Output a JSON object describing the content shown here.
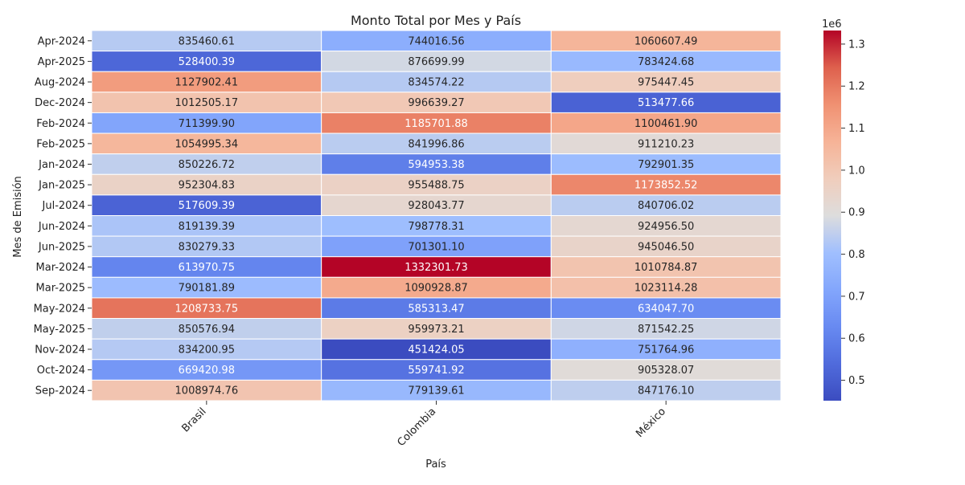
{
  "chart_data": {
    "type": "heatmap",
    "title": "Monto Total por Mes y País",
    "xlabel": "País",
    "ylabel": "Mes de Emisión",
    "columns": [
      "Brasil",
      "Colombia",
      "México"
    ],
    "rows": [
      "Apr-2024",
      "Apr-2025",
      "Aug-2024",
      "Dec-2024",
      "Feb-2024",
      "Feb-2025",
      "Jan-2024",
      "Jan-2025",
      "Jul-2024",
      "Jun-2024",
      "Jun-2025",
      "Mar-2024",
      "Mar-2025",
      "May-2024",
      "May-2025",
      "Nov-2024",
      "Oct-2024",
      "Sep-2024"
    ],
    "values": [
      [
        835460.61,
        744016.56,
        1060607.49
      ],
      [
        528400.39,
        876699.99,
        783424.68
      ],
      [
        1127902.41,
        834574.22,
        975447.45
      ],
      [
        1012505.17,
        996639.27,
        513477.66
      ],
      [
        711399.9,
        1185701.88,
        1100461.9
      ],
      [
        1054995.34,
        841996.86,
        911210.23
      ],
      [
        850226.72,
        594953.38,
        792901.35
      ],
      [
        952304.83,
        955488.75,
        1173852.52
      ],
      [
        517609.39,
        928043.77,
        840706.02
      ],
      [
        819139.39,
        798778.31,
        924956.5
      ],
      [
        830279.33,
        701301.1,
        945046.5
      ],
      [
        613970.75,
        1332301.73,
        1010784.87
      ],
      [
        790181.89,
        1090928.87,
        1023114.28
      ],
      [
        1208733.75,
        585313.47,
        634047.7
      ],
      [
        850576.94,
        959973.21,
        871542.25
      ],
      [
        834200.95,
        451424.05,
        751764.96
      ],
      [
        669420.98,
        559741.92,
        905328.07
      ],
      [
        1008974.76,
        779139.61,
        847176.1
      ]
    ],
    "colormap": "coolwarm",
    "colorbar": {
      "min": 451424.05,
      "max": 1332301.73,
      "ticks": [
        0.5,
        0.6,
        0.7,
        0.8,
        0.9,
        1.0,
        1.1,
        1.2,
        1.3
      ],
      "tick_labels": [
        "0.5",
        "0.6",
        "0.7",
        "0.8",
        "0.9",
        "1.0",
        "1.1",
        "1.2",
        "1.3"
      ],
      "offset_label": "1e6",
      "scale": 1000000
    }
  }
}
